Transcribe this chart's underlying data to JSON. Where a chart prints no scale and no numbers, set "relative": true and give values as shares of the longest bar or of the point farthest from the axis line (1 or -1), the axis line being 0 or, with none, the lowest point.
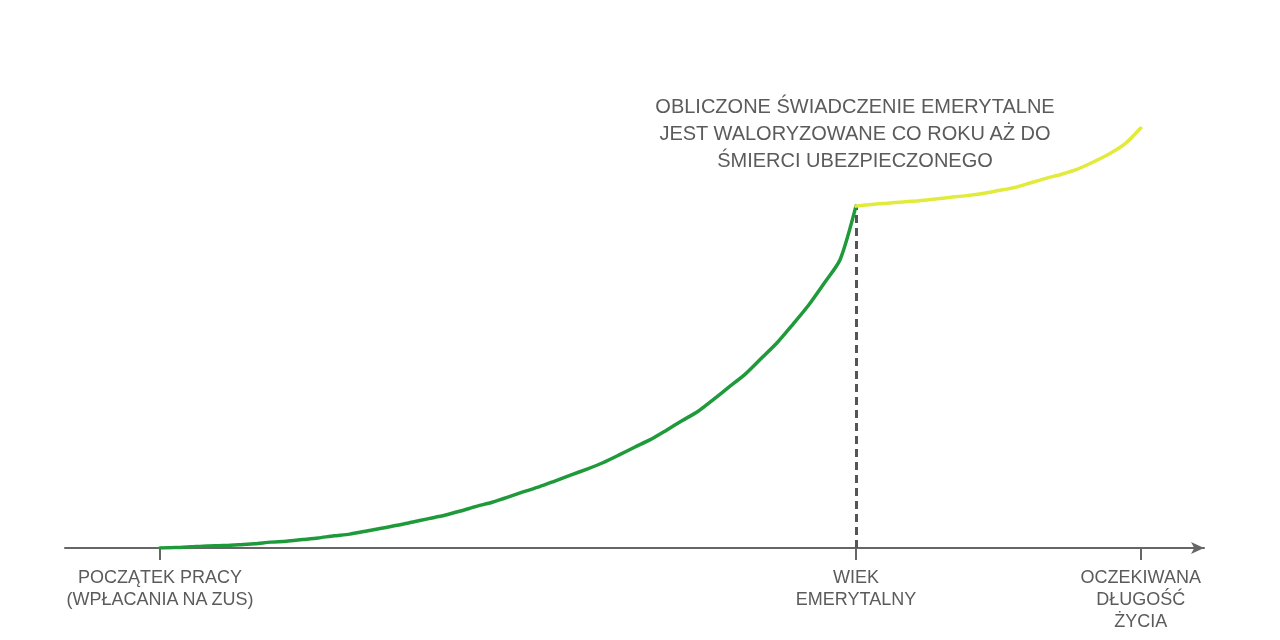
{
  "chart_data": {
    "type": "line",
    "relative": true,
    "categories": [
      null,
      null,
      null,
      null,
      null,
      null,
      "POCZĄTEK PRACY\n(WPŁACANIA NA ZUS)",
      null,
      null,
      null,
      null,
      null,
      null,
      null,
      null,
      null,
      null,
      null,
      null,
      null,
      null,
      null,
      null,
      null,
      null,
      null,
      null,
      null,
      null,
      null,
      null,
      null,
      null,
      null,
      null,
      null,
      null,
      null,
      null,
      null,
      null,
      null,
      null,
      null,
      null,
      null,
      null,
      null,
      null,
      null,
      "WIEK\nEMERYTALNY",
      null,
      null,
      null,
      null,
      null,
      null,
      null,
      null,
      null,
      null,
      null,
      null,
      null,
      null,
      null,
      null,
      null,
      "OCZEKIWANA\nDŁUGOŚĆ\nŻYCIA",
      null,
      null,
      null,
      null
    ],
    "series": [
      {
        "color": "#1f9a3b",
        "values": [
          null,
          null,
          null,
          null,
          null,
          null,
          0,
          0.001,
          0.003,
          0.005,
          0.006,
          0.008,
          0.01,
          0.014,
          0.016,
          0.02,
          0.024,
          0.029,
          0.033,
          0.04,
          0.047,
          0.054,
          0.062,
          0.07,
          0.078,
          0.088,
          0.099,
          0.109,
          0.121,
          0.134,
          0.146,
          0.16,
          0.174,
          0.188,
          0.203,
          0.221,
          0.24,
          0.258,
          0.28,
          0.303,
          0.325,
          0.354,
          0.384,
          0.414,
          0.451,
          0.488,
          0.532,
          0.578,
          0.631,
          0.687,
          0.814,
          null,
          null,
          null,
          null,
          null,
          null,
          null,
          null,
          null,
          null,
          null,
          null,
          null,
          null,
          null,
          null,
          null,
          null,
          null,
          null,
          null,
          null
        ]
      },
      {
        "color": "#e2eb3b",
        "values": [
          null,
          null,
          null,
          null,
          null,
          null,
          null,
          null,
          null,
          null,
          null,
          null,
          null,
          null,
          null,
          null,
          null,
          null,
          null,
          null,
          null,
          null,
          null,
          null,
          null,
          null,
          null,
          null,
          null,
          null,
          null,
          null,
          null,
          null,
          null,
          null,
          null,
          null,
          null,
          null,
          null,
          null,
          null,
          null,
          null,
          null,
          null,
          null,
          null,
          null,
          0.814,
          0.818,
          0.821,
          0.824,
          0.827,
          0.831,
          0.835,
          0.839,
          0.844,
          0.851,
          0.858,
          0.869,
          0.88,
          0.89,
          0.902,
          0.919,
          0.938,
          0.962,
          1,
          null,
          null,
          null,
          null
        ]
      }
    ],
    "ref_lines": [
      {
        "axis": "x",
        "value": "WIEK\nEMERYTALNY",
        "line_style": "dashed",
        "color": "#555555"
      }
    ],
    "annotations": [
      "OBLICZONE ŚWIADCZENIE EMERYTALNE\nJEST WALORYZOWANE CO ROKU AŻ DO\nŚMIERCI UBEZPIECZONEGO"
    ]
  }
}
